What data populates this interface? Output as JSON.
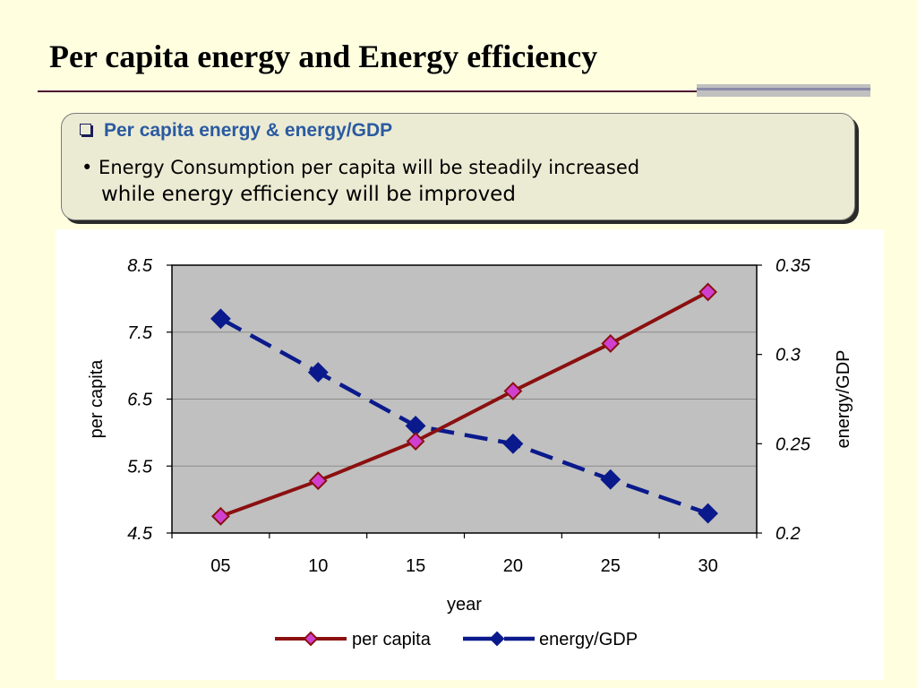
{
  "slide": {
    "title": "Per capita energy and Energy efficiency"
  },
  "callout": {
    "heading": "Per capita energy & energy/GDP",
    "line1": "• Energy Consumption per capita will be steadily increased",
    "line2": "while energy efficiency will be improved"
  },
  "colors": {
    "background": "#ffffe0",
    "plot_area": "#c0c0c0",
    "per_capita_line": "#8b1010",
    "per_capita_marker": "#d040d0",
    "energy_gdp_line": "#0a1a8c",
    "heading_blue": "#2a5aa0"
  },
  "chart_data": {
    "type": "line",
    "categories": [
      "05",
      "10",
      "15",
      "20",
      "25",
      "30"
    ],
    "xlabel": "year",
    "ylabel": "per capita",
    "y2label": "energy/GDP",
    "ylim": [
      4.5,
      8.5
    ],
    "y2lim": [
      0.2,
      0.35
    ],
    "yticks": [
      "4.5",
      "5.5",
      "6.5",
      "7.5",
      "8.5"
    ],
    "y2ticks": [
      "0.2",
      "0.25",
      "0.3",
      "0.35"
    ],
    "grid": true,
    "legend_position": "bottom",
    "series": [
      {
        "name": "per capita",
        "axis": "left",
        "style": "solid",
        "marker": "diamond",
        "values": [
          4.75,
          5.28,
          5.87,
          6.62,
          7.33,
          8.1
        ]
      },
      {
        "name": "energy/GDP",
        "axis": "right",
        "style": "dashed",
        "marker": "diamond",
        "values": [
          0.32,
          0.29,
          0.26,
          0.25,
          0.23,
          0.211
        ]
      }
    ]
  }
}
